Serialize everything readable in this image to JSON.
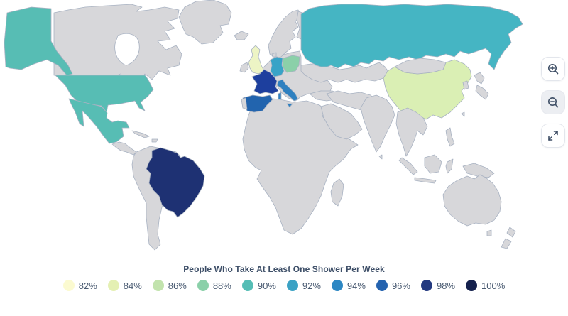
{
  "title": "People Who Take At Least One Shower Per Week",
  "colors": {
    "land_default": "#d7d7da",
    "country_border": "#a8b2c2",
    "ocean": "#ffffff",
    "title_text": "#3e4f68",
    "legend_text": "#4a5b72"
  },
  "controls": {
    "zoom_in_icon": "magnifier-plus",
    "zoom_out_icon": "magnifier-minus",
    "fullscreen_icon": "expand-arrows"
  },
  "legend": [
    {
      "label": "82%",
      "color": "#fbfad0"
    },
    {
      "label": "84%",
      "color": "#e4f0b3"
    },
    {
      "label": "86%",
      "color": "#c2e3ad"
    },
    {
      "label": "88%",
      "color": "#8bd0a9"
    },
    {
      "label": "90%",
      "color": "#55bdb5"
    },
    {
      "label": "92%",
      "color": "#3ba2c4"
    },
    {
      "label": "94%",
      "color": "#2d87c3"
    },
    {
      "label": "96%",
      "color": "#2563af"
    },
    {
      "label": "98%",
      "color": "#243a80"
    },
    {
      "label": "100%",
      "color": "#15214d"
    }
  ],
  "chart_data": {
    "type": "heatmap",
    "subtype": "choropleth-world-map",
    "title": "People Who Take At Least One Shower Per Week",
    "scale": {
      "min": 82,
      "max": 100,
      "step": 2,
      "unit": "%"
    },
    "legend_position": "bottom",
    "regions": [
      {
        "id": "united-states",
        "country": "United States",
        "value": 90,
        "color": "#57bdb4"
      },
      {
        "id": "mexico",
        "country": "Mexico",
        "value": 90,
        "color": "#57bdb4"
      },
      {
        "id": "brazil",
        "country": "Brazil",
        "value": 99,
        "color": "#1e3173"
      },
      {
        "id": "united-kingdom",
        "country": "United Kingdom",
        "value": 83,
        "color": "#edf4c5"
      },
      {
        "id": "france",
        "country": "France",
        "value": 97,
        "color": "#1d3f9e"
      },
      {
        "id": "spain",
        "country": "Spain",
        "value": 96,
        "color": "#2264ae"
      },
      {
        "id": "italy",
        "country": "Italy",
        "value": 94,
        "color": "#2e80c0"
      },
      {
        "id": "germany",
        "country": "Germany",
        "value": 92,
        "color": "#38a3c7"
      },
      {
        "id": "poland",
        "country": "Poland",
        "value": 88,
        "color": "#8bd0a9"
      },
      {
        "id": "russia",
        "country": "Russia",
        "value": 91,
        "color": "#45b5c3"
      },
      {
        "id": "china",
        "country": "China",
        "value": 85,
        "color": "#daefb4"
      }
    ],
    "uncolored_regions_note": "all other countries shown in neutral gray (no data)"
  }
}
